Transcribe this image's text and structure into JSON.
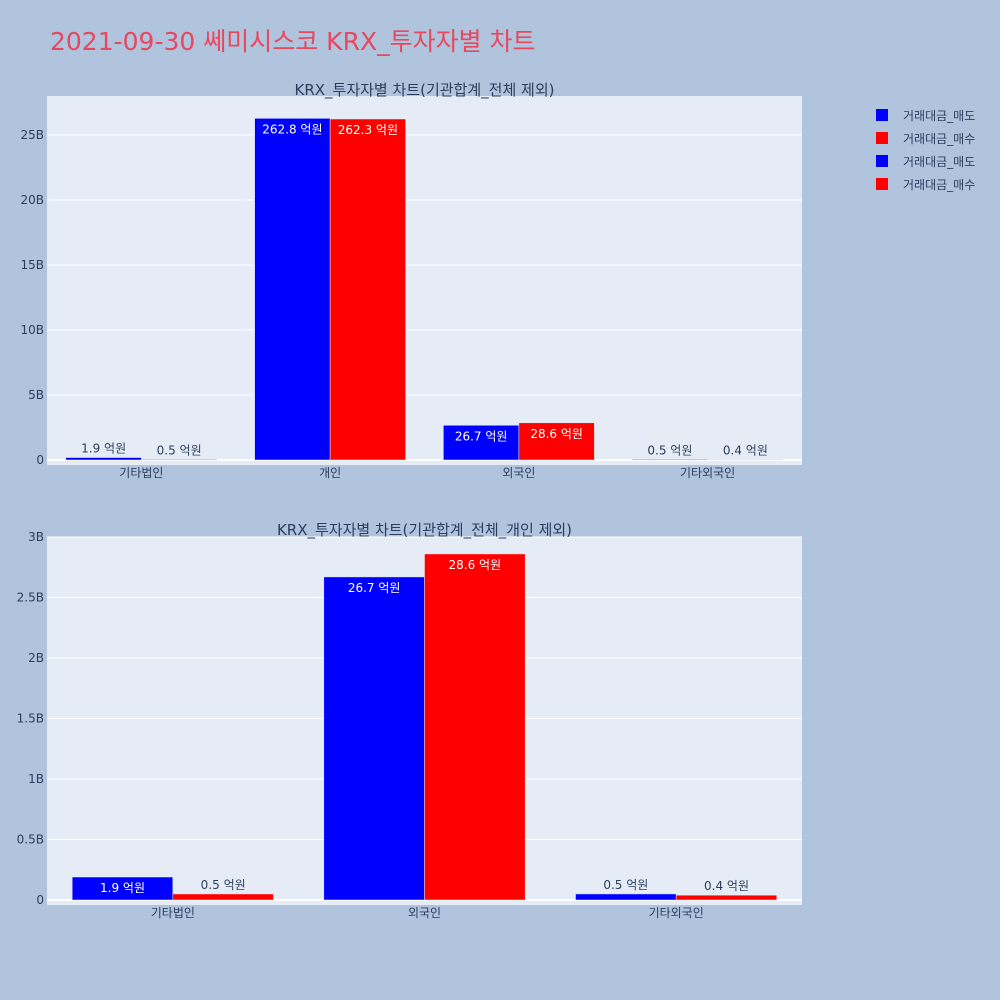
{
  "page": {
    "title": "2021-09-30 쎄미시스코 KRX_투자자별 차트"
  },
  "legend": [
    {
      "label": "거래대금_매도",
      "color": "#0000ff"
    },
    {
      "label": "거래대금_매수",
      "color": "#ff0000"
    },
    {
      "label": "거래대금_매도",
      "color": "#0000ff"
    },
    {
      "label": "거래대금_매수",
      "color": "#ff0000"
    }
  ],
  "chart_data": [
    {
      "type": "bar",
      "title": "KRX_투자자별 차트(기관합계_전체 제외)",
      "categories": [
        "기타법인",
        "개인",
        "외국인",
        "기타외국인"
      ],
      "ylim": [
        0,
        28000000000
      ],
      "yticks": [
        0,
        5000000000,
        10000000000,
        15000000000,
        20000000000,
        25000000000
      ],
      "ytick_labels": [
        "0",
        "5B",
        "10B",
        "15B",
        "20B",
        "25B"
      ],
      "grid": true,
      "series": [
        {
          "name": "거래대금_매도",
          "color": "#0000ff",
          "values": [
            190000000,
            26280000000,
            2670000000,
            50000000
          ],
          "labels": [
            "1.9 억원",
            "262.8 억원",
            "26.7 억원",
            "0.5 억원"
          ]
        },
        {
          "name": "거래대금_매수",
          "color": "#ff0000",
          "values": [
            50000000,
            26230000000,
            2860000000,
            40000000
          ],
          "labels": [
            "0.5 억원",
            "262.3 억원",
            "28.6 억원",
            "0.4 억원"
          ]
        }
      ]
    },
    {
      "type": "bar",
      "title": "KRX_투자자별 차트(기관합계_전체_개인 제외)",
      "categories": [
        "기타법인",
        "외국인",
        "기타외국인"
      ],
      "ylim": [
        0,
        3000000000
      ],
      "yticks": [
        0,
        500000000,
        1000000000,
        1500000000,
        2000000000,
        2500000000,
        3000000000
      ],
      "ytick_labels": [
        "0",
        "0.5B",
        "1B",
        "1.5B",
        "2B",
        "2.5B",
        "3B"
      ],
      "grid": true,
      "series": [
        {
          "name": "거래대금_매도",
          "color": "#0000ff",
          "values": [
            190000000,
            2670000000,
            50000000
          ],
          "labels": [
            "1.9 억원",
            "26.7 억원",
            "0.5 억원"
          ]
        },
        {
          "name": "거래대금_매수",
          "color": "#ff0000",
          "values": [
            50000000,
            2860000000,
            40000000
          ],
          "labels": [
            "0.5 억원",
            "28.6 억원",
            "0.4 억원"
          ]
        }
      ]
    }
  ]
}
